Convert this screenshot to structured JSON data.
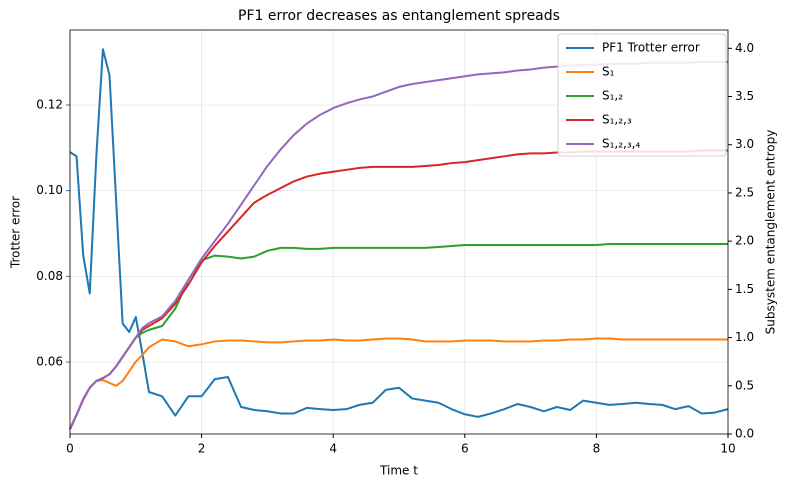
{
  "chart_data": {
    "type": "line",
    "title": "PF1 error decreases as entanglement spreads",
    "xlabel": "Time t",
    "ylabel": "Trotter error",
    "y2label": "Subsystem entanglement entropy",
    "ylabel_color": "#1f77b4",
    "grid": true,
    "legend": "upper right",
    "xlim": [
      0,
      10
    ],
    "xticks": [
      0,
      2,
      4,
      6,
      8,
      10
    ],
    "ylim": [
      0.0432,
      0.1375
    ],
    "yticks": [
      0.06,
      0.08,
      {
        "value": 0.1,
        "label": "0.10"
      },
      0.12
    ],
    "y2lim": [
      0,
      4.19
    ],
    "y2ticks": [
      {
        "value": 0,
        "label": "0.0"
      },
      0.5,
      {
        "value": 1,
        "label": "1.0"
      },
      1.5,
      {
        "value": 2,
        "label": "2.0"
      },
      2.5,
      {
        "value": 3,
        "label": "3.0"
      },
      3.5,
      {
        "value": 4,
        "label": "4.0"
      }
    ],
    "x": [
      0,
      0.1,
      0.2,
      0.3,
      0.4,
      0.5,
      0.6,
      0.7,
      0.8,
      0.9,
      1.0,
      1.1,
      1.2,
      1.4,
      1.6,
      1.8,
      2.0,
      2.2,
      2.4,
      2.6,
      2.8,
      3.0,
      3.2,
      3.4,
      3.6,
      3.8,
      4.0,
      4.2,
      4.4,
      4.6,
      4.8,
      5.0,
      5.2,
      5.4,
      5.6,
      5.8,
      6.0,
      6.2,
      6.4,
      6.6,
      6.8,
      7.0,
      7.2,
      7.4,
      7.6,
      7.8,
      8.0,
      8.2,
      8.4,
      8.6,
      8.8,
      9.0,
      9.2,
      9.4,
      9.6,
      9.8,
      10
    ],
    "series": [
      {
        "name": "PF1 Trotter error",
        "color": "#1f77b4",
        "axis": "y",
        "values": [
          0.109,
          0.108,
          0.085,
          0.076,
          0.108,
          0.133,
          0.127,
          0.098,
          0.069,
          0.067,
          0.0705,
          0.062,
          0.053,
          0.052,
          0.0475,
          0.052,
          0.052,
          0.056,
          0.0565,
          0.0495,
          0.0488,
          0.0485,
          0.048,
          0.048,
          0.0493,
          0.049,
          0.0488,
          0.049,
          0.05,
          0.0505,
          0.0535,
          0.054,
          0.0515,
          0.051,
          0.0505,
          0.049,
          0.0478,
          0.0472,
          0.048,
          0.049,
          0.0502,
          0.0495,
          0.0485,
          0.0495,
          0.0488,
          0.051,
          0.0505,
          0.05,
          0.0502,
          0.0505,
          0.0502,
          0.05,
          0.049,
          0.0497,
          0.048,
          0.0482,
          0.049
        ]
      },
      {
        "name": "S₁",
        "color": "#ff7f0e",
        "axis": "y2",
        "values": [
          0.05,
          0.2,
          0.35,
          0.48,
          0.55,
          0.56,
          0.53,
          0.5,
          0.55,
          0.65,
          0.75,
          0.82,
          0.9,
          0.98,
          0.96,
          0.91,
          0.93,
          0.96,
          0.97,
          0.97,
          0.96,
          0.95,
          0.95,
          0.96,
          0.97,
          0.97,
          0.98,
          0.97,
          0.97,
          0.98,
          0.99,
          0.99,
          0.98,
          0.96,
          0.96,
          0.96,
          0.97,
          0.97,
          0.97,
          0.96,
          0.96,
          0.96,
          0.97,
          0.97,
          0.98,
          0.98,
          0.99,
          0.99,
          0.98,
          0.98,
          0.98,
          0.98,
          0.98,
          0.98,
          0.98,
          0.98,
          0.98
        ]
      },
      {
        "name": "S₁,₂",
        "color": "#2ca02c",
        "axis": "y2",
        "values": [
          0.05,
          0.2,
          0.36,
          0.48,
          0.55,
          0.58,
          0.62,
          0.7,
          0.8,
          0.9,
          1.0,
          1.05,
          1.08,
          1.12,
          1.3,
          1.6,
          1.8,
          1.85,
          1.84,
          1.82,
          1.84,
          1.9,
          1.93,
          1.93,
          1.92,
          1.92,
          1.93,
          1.93,
          1.93,
          1.93,
          1.93,
          1.93,
          1.93,
          1.93,
          1.94,
          1.95,
          1.96,
          1.96,
          1.96,
          1.96,
          1.96,
          1.96,
          1.96,
          1.96,
          1.96,
          1.96,
          1.96,
          1.97,
          1.97,
          1.97,
          1.97,
          1.97,
          1.97,
          1.97,
          1.97,
          1.97,
          1.97
        ]
      },
      {
        "name": "S₁,₂,₃",
        "color": "#d62728",
        "axis": "y2",
        "values": [
          0.05,
          0.2,
          0.36,
          0.48,
          0.55,
          0.58,
          0.62,
          0.7,
          0.8,
          0.9,
          1.0,
          1.08,
          1.12,
          1.2,
          1.35,
          1.55,
          1.78,
          1.95,
          2.1,
          2.25,
          2.4,
          2.48,
          2.55,
          2.62,
          2.67,
          2.7,
          2.72,
          2.74,
          2.76,
          2.77,
          2.77,
          2.77,
          2.77,
          2.78,
          2.79,
          2.81,
          2.82,
          2.84,
          2.86,
          2.88,
          2.9,
          2.91,
          2.91,
          2.92,
          2.92,
          2.93,
          2.93,
          2.93,
          2.93,
          2.93,
          2.93,
          2.93,
          2.93,
          2.93,
          2.94,
          2.94,
          2.94
        ]
      },
      {
        "name": "S₁,₂,₃,₄",
        "color": "#9467bd",
        "axis": "y2",
        "values": [
          0.05,
          0.2,
          0.36,
          0.48,
          0.55,
          0.58,
          0.62,
          0.7,
          0.8,
          0.9,
          1.0,
          1.1,
          1.15,
          1.22,
          1.38,
          1.6,
          1.82,
          2.0,
          2.18,
          2.38,
          2.58,
          2.78,
          2.95,
          3.1,
          3.22,
          3.31,
          3.38,
          3.43,
          3.47,
          3.5,
          3.55,
          3.6,
          3.63,
          3.65,
          3.67,
          3.69,
          3.71,
          3.73,
          3.74,
          3.75,
          3.77,
          3.78,
          3.8,
          3.81,
          3.82,
          3.83,
          3.83,
          3.84,
          3.84,
          3.84,
          3.85,
          3.85,
          3.85,
          3.85,
          3.86,
          3.86,
          3.86
        ]
      }
    ]
  }
}
